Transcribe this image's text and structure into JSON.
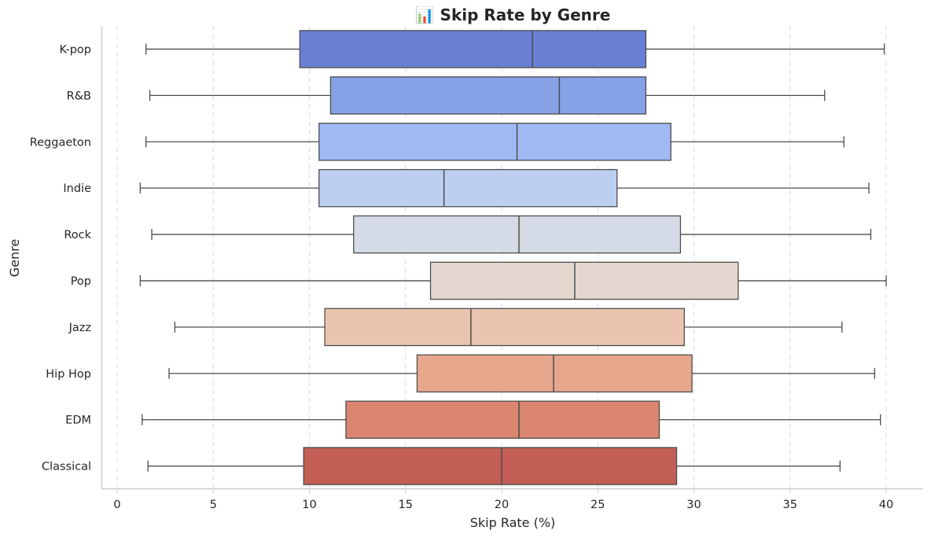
{
  "chart_data": {
    "type": "boxplot",
    "orientation": "horizontal",
    "title": "📊 Skip Rate by Genre",
    "xlabel": "Skip Rate (%)",
    "ylabel": "Genre",
    "xlim": [
      -0.8,
      41.8
    ],
    "xticks": [
      0,
      5,
      10,
      15,
      20,
      25,
      30,
      35,
      40
    ],
    "grid": "x-dashed",
    "palette": "coolwarm",
    "categories": [
      "K-pop",
      "R&B",
      "Reggaeton",
      "Indie",
      "Rock",
      "Pop",
      "Jazz",
      "Hip Hop",
      "EDM",
      "Classical"
    ],
    "boxes": [
      {
        "genre": "K-pop",
        "min": 1.5,
        "q1": 9.5,
        "median": 21.6,
        "q3": 27.5,
        "max": 39.9,
        "color": "#6a7fd4"
      },
      {
        "genre": "R&B",
        "min": 1.7,
        "q1": 11.1,
        "median": 23.0,
        "q3": 27.5,
        "max": 36.8,
        "color": "#86a1e6"
      },
      {
        "genre": "Reggaeton",
        "min": 1.5,
        "q1": 10.5,
        "median": 20.8,
        "q3": 28.8,
        "max": 37.8,
        "color": "#a0baf4"
      },
      {
        "genre": "Indie",
        "min": 1.2,
        "q1": 10.5,
        "median": 17.0,
        "q3": 26.0,
        "max": 39.1,
        "color": "#bccff1"
      },
      {
        "genre": "Rock",
        "min": 1.8,
        "q1": 12.3,
        "median": 20.9,
        "q3": 29.3,
        "max": 39.2,
        "color": "#d4dbe7"
      },
      {
        "genre": "Pop",
        "min": 1.2,
        "q1": 16.3,
        "median": 23.8,
        "q3": 32.3,
        "max": 40.0,
        "color": "#e4d7d0"
      },
      {
        "genre": "Jazz",
        "min": 3.0,
        "q1": 10.8,
        "median": 18.4,
        "q3": 29.5,
        "max": 37.7,
        "color": "#ebc4b0"
      },
      {
        "genre": "Hip Hop",
        "min": 2.7,
        "q1": 15.6,
        "median": 22.7,
        "q3": 29.9,
        "max": 39.4,
        "color": "#e6a78d"
      },
      {
        "genre": "EDM",
        "min": 1.3,
        "q1": 11.9,
        "median": 20.9,
        "q3": 28.2,
        "max": 39.7,
        "color": "#d9856f"
      },
      {
        "genre": "Classical",
        "min": 1.6,
        "q1": 9.7,
        "median": 20.0,
        "q3": 29.1,
        "max": 37.6,
        "color": "#c45f55"
      }
    ]
  }
}
